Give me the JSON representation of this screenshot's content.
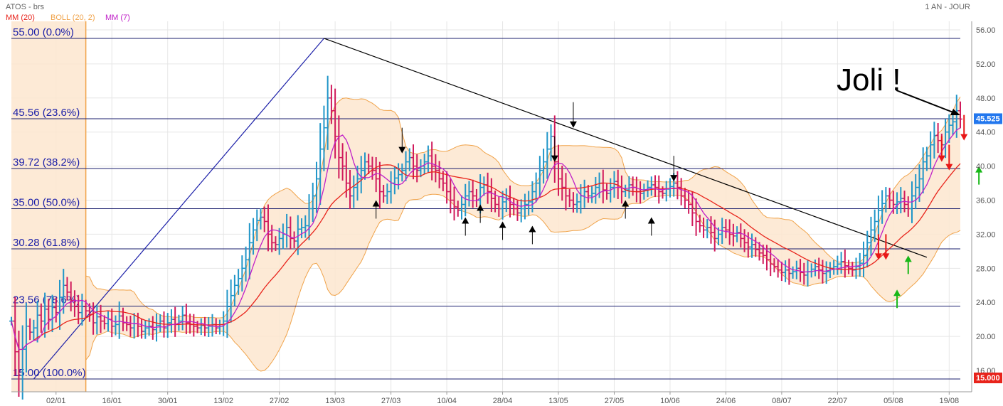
{
  "header": {
    "symbol": "ATOS - brs",
    "period": "1 AN - JOUR",
    "legend": [
      {
        "label": "MM (20)",
        "color": "#e8231b"
      },
      {
        "label": "BOLL (20, 2)",
        "color": "#f0a34a"
      },
      {
        "label": "MM (7)",
        "color": "#c020c8"
      }
    ]
  },
  "annotations": {
    "joli_text": "Joli !",
    "price_tag": {
      "label": "45.525",
      "value": 45.525,
      "color": "#2277ee"
    },
    "low_tag": {
      "label": "15.000",
      "value": 15.0,
      "color": "#e8231b"
    }
  },
  "chart_data": {
    "type": "ohlc",
    "instrument": "ATOS",
    "yaxis": {
      "min": 13.5,
      "max": 57,
      "ticks": [
        16,
        20,
        24,
        28,
        32,
        36,
        40,
        44,
        48,
        52,
        56
      ],
      "tick_labels": [
        "16.00",
        "20.00",
        "24.00",
        "28.00",
        "32.00",
        "36.00",
        "40.00",
        "44.00",
        "48.00",
        "52.00",
        "56.00"
      ]
    },
    "xaxis": {
      "labels": [
        "02/01",
        "16/01",
        "30/01",
        "13/02",
        "27/02",
        "13/03",
        "27/03",
        "10/04",
        "28/04",
        "13/05",
        "27/05",
        "10/06",
        "24/06",
        "08/07",
        "22/07",
        "05/08",
        "19/08"
      ],
      "label_bar_index": [
        12,
        27,
        42,
        57,
        72,
        87,
        102,
        117,
        132,
        147,
        162,
        177,
        192,
        207,
        222,
        237,
        252
      ]
    },
    "fibonacci": [
      {
        "price": 55.0,
        "label": "55.00  (0.0%)"
      },
      {
        "price": 45.56,
        "label": "45.56  (23.6%)"
      },
      {
        "price": 39.72,
        "label": "39.72  (38.2%)"
      },
      {
        "price": 35.0,
        "label": "35.00  (50.0%)"
      },
      {
        "price": 30.28,
        "label": "30.28  (61.8%)"
      },
      {
        "price": 23.56,
        "label": "23.56  (78.6%)"
      },
      {
        "price": 15.0,
        "label": "15.00  (100.0%)"
      }
    ],
    "closes": [
      21.8,
      18.2,
      15.4,
      18.5,
      21.2,
      20.5,
      21.0,
      22.5,
      21.8,
      23.2,
      22.0,
      23.4,
      22.8,
      24.6,
      26.0,
      25.2,
      24.2,
      23.5,
      22.8,
      23.5,
      23.0,
      22.6,
      21.6,
      22.3,
      21.8,
      21.5,
      22.0,
      21.2,
      21.4,
      22.4,
      21.6,
      21.4,
      21.0,
      21.5,
      21.2,
      20.6,
      21.0,
      21.2,
      20.8,
      21.3,
      21.8,
      21.0,
      21.6,
      22.0,
      21.4,
      21.8,
      22.5,
      21.6,
      21.4,
      21.2,
      21.0,
      21.3,
      21.0,
      21.2,
      21.4,
      21.0,
      21.2,
      21.8,
      23.5,
      24.8,
      26.0,
      26.8,
      28.0,
      29.0,
      31.0,
      32.5,
      33.6,
      34.0,
      33.5,
      32.0,
      31.0,
      30.8,
      31.5,
      32.0,
      32.8,
      31.5,
      31.2,
      32.6,
      32.8,
      33.0,
      35.0,
      36.5,
      38.5,
      42.0,
      44.5,
      48.0,
      46.5,
      43.5,
      41.0,
      40.0,
      38.0,
      36.5,
      37.5,
      38.5,
      39.5,
      40.5,
      40.0,
      39.5,
      38.5,
      37.0,
      36.5,
      37.0,
      38.0,
      38.6,
      39.0,
      39.5,
      40.5,
      41.0,
      40.0,
      39.5,
      40.0,
      40.5,
      41.2,
      40.0,
      39.5,
      38.5,
      38.0,
      37.0,
      36.0,
      35.2,
      34.8,
      35.5,
      36.5,
      37.0,
      36.5,
      36.0,
      37.5,
      37.8,
      37.0,
      36.2,
      35.5,
      35.0,
      35.8,
      36.2,
      35.5,
      35.0,
      34.5,
      35.0,
      35.5,
      35.8,
      37.0,
      38.0,
      39.5,
      40.5,
      42.0,
      43.5,
      40.5,
      38.5,
      37.5,
      36.5,
      36.0,
      35.5,
      35.8,
      36.5,
      37.0,
      36.5,
      36.8,
      37.5,
      38.0,
      37.2,
      36.8,
      37.5,
      38.2,
      37.5,
      37.0,
      37.2,
      37.8,
      37.5,
      37.0,
      36.8,
      37.2,
      37.5,
      37.8,
      37.5,
      37.0,
      36.8,
      37.3,
      37.6,
      38.0,
      37.5,
      36.5,
      36.0,
      35.5,
      34.5,
      33.5,
      33.0,
      32.5,
      32.8,
      32.2,
      31.5,
      32.0,
      32.8,
      32.5,
      32.0,
      31.8,
      32.2,
      31.5,
      31.0,
      30.5,
      30.8,
      30.2,
      29.8,
      29.5,
      29.0,
      28.5,
      28.2,
      27.8,
      27.5,
      27.8,
      27.4,
      27.6,
      28.0,
      27.5,
      27.2,
      27.6,
      27.9,
      28.2,
      27.8,
      27.4,
      27.6,
      28.0,
      28.2,
      28.5,
      28.8,
      28.3,
      28.0,
      27.8,
      28.2,
      28.6,
      29.5,
      31.0,
      32.5,
      33.5,
      34.8,
      35.6,
      36.5,
      36.0,
      35.5,
      35.8,
      36.2,
      35.5,
      35.0,
      36.5,
      37.5,
      38.5,
      40.5,
      41.2,
      42.5,
      43.6,
      43.0,
      42.5,
      44.0,
      44.8,
      45.2,
      46.5,
      45.525
    ],
    "overlays": [
      {
        "name": "MM (20)",
        "type": "sma",
        "period": 20,
        "color": "#e8231b"
      },
      {
        "name": "MM (7)",
        "type": "sma",
        "period": 7,
        "color": "#c020c8"
      },
      {
        "name": "BOLL (20, 2)",
        "type": "bollinger",
        "period": 20,
        "stddev": 2,
        "color": "#f0a34a"
      }
    ],
    "trendlines": [
      {
        "from": {
          "bar": 6,
          "price": 15.0
        },
        "to": {
          "bar": 84,
          "price": 55.0
        },
        "color": "#1b1fa8"
      },
      {
        "from": {
          "bar": 84,
          "price": 55.0
        },
        "to": {
          "bar": 246,
          "price": 29.3
        },
        "color": "#000000"
      }
    ],
    "arrows_down": [
      [
        105,
        41.5
      ],
      [
        146,
        40.5
      ],
      [
        151,
        44.5
      ],
      [
        178,
        38.2
      ],
      [
        233,
        29.0
      ],
      [
        235,
        29.0
      ],
      [
        250,
        40.5
      ],
      [
        252,
        39.5
      ],
      [
        256,
        43.0
      ]
    ],
    "arrows_up": [
      [
        98,
        36.0
      ],
      [
        122,
        34.0
      ],
      [
        126,
        35.5
      ],
      [
        132,
        33.5
      ],
      [
        140,
        33.0
      ],
      [
        165,
        36.0
      ],
      [
        172,
        34.0
      ],
      [
        238,
        25.5
      ],
      [
        241,
        29.5
      ],
      [
        260,
        40.0
      ]
    ],
    "arrow_colors": {
      "default": "#000000",
      "late_down": "#e81616",
      "late_up": "#18b818"
    }
  }
}
